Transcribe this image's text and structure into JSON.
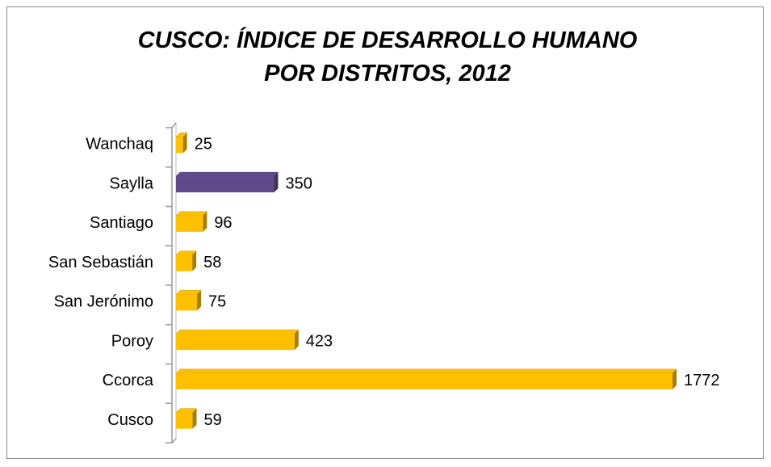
{
  "chart_data": {
    "type": "bar",
    "orientation": "horizontal",
    "title": "CUSCO: ÍNDICE DE DESARROLLO HUMANO POR DISTRITOS, 2012",
    "categories": [
      "Wanchaq",
      "Saylla",
      "Santiago",
      "San Sebastián",
      "San Jerónimo",
      "Poroy",
      "Ccorca",
      "Cusco"
    ],
    "values": [
      25,
      350,
      96,
      58,
      75,
      423,
      1772,
      59
    ],
    "colors": [
      "#FFC000",
      "#5F4B8B",
      "#FFC000",
      "#FFC000",
      "#FFC000",
      "#FFC000",
      "#FFC000",
      "#FFC000"
    ]
  }
}
